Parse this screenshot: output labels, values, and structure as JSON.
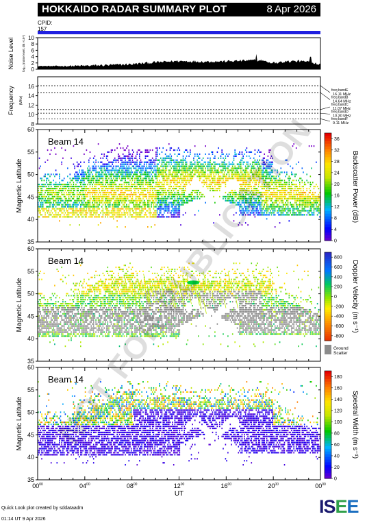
{
  "header": {
    "title": "HOKKAIDO RADAR SUMMARY PLOT",
    "date": "8 Apr 2026",
    "cpid_label": "CPID:",
    "cpid_value": "157"
  },
  "footer": {
    "created": "Quick Look plot created by sddataadm",
    "timestamp": "01:14 UT  9 Apr 2026",
    "logo": "ISEE"
  },
  "watermark": "NOT FOR PUBLICATION",
  "colors": {
    "cpid_bar": "#2020e0",
    "ground_scatter": "#8c8c8c"
  },
  "chart_data": [
    {
      "type": "area",
      "panel": "noise",
      "ylabel": "Noise Level",
      "ylabel_sub": "log₁₀ (noise level, dB ×10⁴)",
      "ylim": [
        0,
        10
      ],
      "yticks": [
        "0",
        "2",
        "4",
        "6",
        "8",
        "10"
      ],
      "x_hours": [
        0,
        2,
        4,
        6,
        8,
        10,
        12,
        14,
        16,
        18,
        19,
        20,
        21,
        22,
        23,
        24
      ],
      "values": [
        1,
        1,
        1.1,
        1.3,
        1.6,
        2.2,
        2.6,
        2.4,
        2.5,
        2.8,
        2.9,
        2.0,
        2.4,
        2.6,
        2.4,
        1.6
      ]
    },
    {
      "type": "line",
      "panel": "frequency",
      "ylabel": "Frequency",
      "ylabel_unit": "(MHz)",
      "ylim": [
        8,
        18
      ],
      "yticks": [
        "8",
        "10",
        "12",
        "14",
        "16"
      ],
      "bands": [
        {
          "label": "freq bandE",
          "freq": "16.11 MHz",
          "value": 16.11
        },
        {
          "label": "freq bandB",
          "freq": "14.64 MHz",
          "value": 14.64
        },
        {
          "label": "freq bandC",
          "freq": "11.07 MHz",
          "value": 11.07
        },
        {
          "label": "freq bandD",
          "freq": "10.30 MHz",
          "value": 10.3
        },
        {
          "label": "freq bandF",
          "freq": "9.11 MHz",
          "value": 9.11
        }
      ]
    },
    {
      "type": "heatmap",
      "panel": "power",
      "beam": "Beam 14",
      "ylabel": "Magnetic Latitude",
      "ylim": [
        35,
        60
      ],
      "yticks": [
        "35",
        "40",
        "45",
        "50",
        "55",
        "60"
      ],
      "colorbar_label": "Backscatter Power (dB)",
      "colorbar_ticks": [
        "0",
        "4",
        "8",
        "12",
        "16",
        "20",
        "24",
        "28",
        "32",
        "36"
      ],
      "colorbar_range": [
        0,
        38
      ]
    },
    {
      "type": "heatmap",
      "panel": "velocity",
      "beam": "Beam 14",
      "ylabel": "Magnetic Latitude",
      "ylim": [
        35,
        60
      ],
      "yticks": [
        "35",
        "40",
        "45",
        "50",
        "55",
        "60"
      ],
      "colorbar_label": "Doppler Velocity (m s⁻¹)",
      "colorbar_ticks": [
        "800",
        "600",
        "400",
        "200",
        "0",
        "-200",
        "-400",
        "-600",
        "-800"
      ],
      "colorbar_range": [
        -900,
        900
      ],
      "ground_label_1": "Ground",
      "ground_label_2": "Scatter"
    },
    {
      "type": "heatmap",
      "panel": "width",
      "beam": "Beam 14",
      "ylabel": "Magnetic Latitude",
      "ylim": [
        35,
        60
      ],
      "yticks": [
        "35",
        "40",
        "45",
        "50",
        "55",
        "60"
      ],
      "colorbar_label": "Spectral Width (m s⁻¹)",
      "colorbar_ticks": [
        "0",
        "20",
        "40",
        "60",
        "80",
        "100",
        "120",
        "140",
        "160",
        "180"
      ],
      "colorbar_range": [
        0,
        190
      ]
    }
  ],
  "time_axis": {
    "xlabel": "UT",
    "ticks": [
      {
        "hh": "00",
        "mm": "00"
      },
      {
        "hh": "04",
        "mm": "00"
      },
      {
        "hh": "08",
        "mm": "00"
      },
      {
        "hh": "12",
        "mm": "00"
      },
      {
        "hh": "16",
        "mm": "00"
      },
      {
        "hh": "20",
        "mm": "00"
      },
      {
        "hh": "00",
        "mm": "00"
      }
    ]
  }
}
